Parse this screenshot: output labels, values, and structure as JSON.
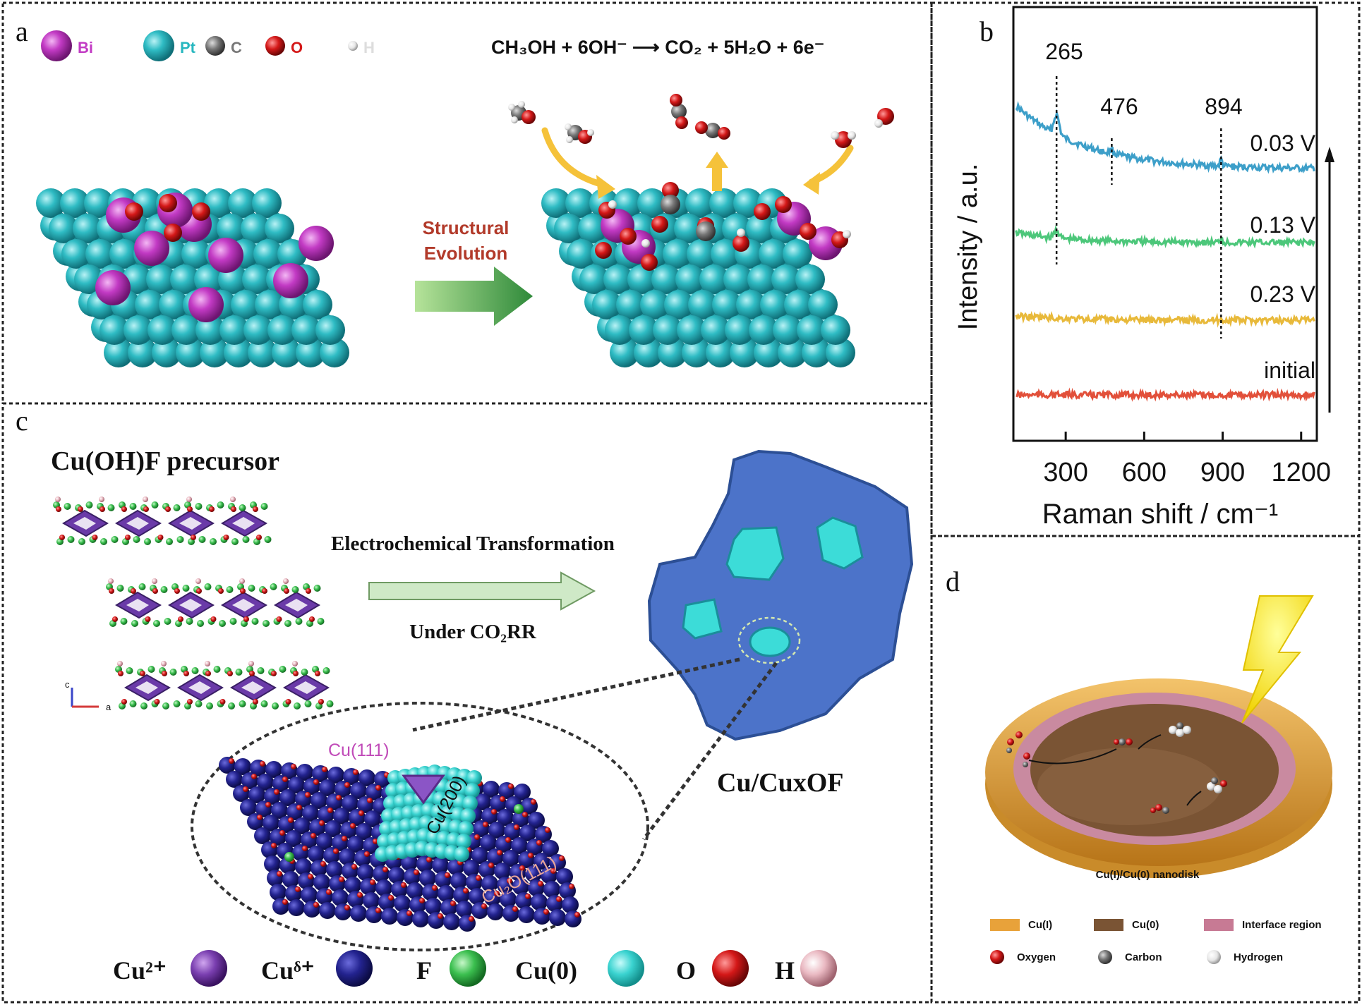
{
  "panels": {
    "a": {
      "label": "a",
      "legend": [
        {
          "symbol": "Bi",
          "color": "#c23ac4"
        },
        {
          "symbol": "Pt",
          "color": "#27b7bf"
        },
        {
          "symbol": "C",
          "color": "#777777"
        },
        {
          "symbol": "O",
          "color": "#d41818"
        },
        {
          "symbol": "H",
          "color": "#dddddd"
        }
      ],
      "equation": "CH₃OH + 6OH⁻ ⟶ CO₂ + 5H₂O + 6e⁻",
      "arrow_text_line1": "Structural",
      "arrow_text_line2": "Evolution"
    },
    "b": {
      "label": "b",
      "peak_labels": [
        "265",
        "476",
        "894"
      ],
      "curve_labels": [
        "0.03 V",
        "0.13 V",
        "0.23 V",
        "initial"
      ],
      "y_axis_label": "Intensity / a.u.",
      "x_axis_label": "Raman shift / cm⁻¹",
      "x_ticks": [
        "300",
        "600",
        "900",
        "1200"
      ],
      "curve_colors": [
        "#3d9fc9",
        "#4cc77a",
        "#e8b93a",
        "#e2503a"
      ]
    },
    "c": {
      "label": "c",
      "precursor_title": "Cu(OH)F precursor",
      "transform_text": "Electrochemical Transformation",
      "condition_text": "Under CO₂RR",
      "product_label": "Cu/CuxOF",
      "facet_labels": [
        "Cu(111)",
        "Cu(200)",
        "Cu₂O(111)"
      ],
      "axes_labels": [
        "c",
        "a"
      ],
      "legend": [
        {
          "label": "Cu²⁺",
          "color": "#7a3fb0"
        },
        {
          "label": "Cuᵟ⁺",
          "color": "#2a2a9a"
        },
        {
          "label": "F",
          "color": "#3bbf4f"
        },
        {
          "label": "Cu(0)",
          "color": "#3ad3d0"
        },
        {
          "label": "O",
          "color": "#e02020"
        },
        {
          "label": "H",
          "color": "#e7b2bb"
        }
      ]
    },
    "d": {
      "label": "d",
      "caption": "Cu(I)/Cu(0) nanodisk",
      "legend": [
        {
          "label": "Cu(I)",
          "color": "#e8a23a"
        },
        {
          "label": "Cu(0)",
          "color": "#7a5434"
        },
        {
          "label": "Interface region",
          "color": "#c77a94"
        },
        {
          "label": "Oxygen",
          "color": "#d41818"
        },
        {
          "label": "Carbon",
          "color": "#111111"
        },
        {
          "label": "Hydrogen",
          "color": "#999999"
        }
      ]
    }
  }
}
